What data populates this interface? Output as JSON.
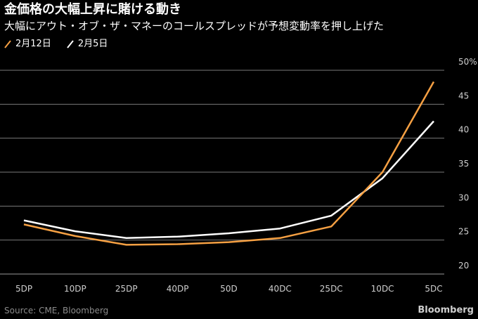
{
  "title": "金価格の大幅上昇に賭ける動き",
  "subtitle": "大幅にアウト・オブ・ザ・マネーのコールスプレッドが予想変動率を押し上げた",
  "legend": [
    {
      "label": "2月12日",
      "color": "#f5a043"
    },
    {
      "label": "2月5日",
      "color": "#ffffff"
    }
  ],
  "chart_data": {
    "type": "line",
    "categories": [
      "5DP",
      "10DP",
      "25DP",
      "40DP",
      "50D",
      "40DC",
      "25DC",
      "10DC",
      "5DC"
    ],
    "series": [
      {
        "name": "2月12日",
        "color": "#f5a043",
        "values": [
          27.3,
          25.6,
          24.3,
          24.4,
          24.7,
          25.3,
          27.0,
          35.0,
          48.3
        ]
      },
      {
        "name": "2月5日",
        "color": "#ffffff",
        "values": [
          27.9,
          26.3,
          25.3,
          25.5,
          26.0,
          26.7,
          28.6,
          34.1,
          42.5
        ]
      }
    ],
    "ylim": [
      20,
      50
    ],
    "yticks": [
      20,
      25,
      30,
      35,
      40,
      45,
      50
    ],
    "ytick_labels": [
      "20",
      "25",
      "30",
      "35",
      "40",
      "45",
      "50%"
    ],
    "xlabel": "",
    "ylabel": "",
    "grid": true,
    "legend_position": "top-left"
  },
  "footer": {
    "source": "Source: CME, Bloomberg",
    "brand": "Bloomberg"
  },
  "colors": {
    "background": "#000000",
    "grid": "#7a7a7a",
    "axis_text": "#cfcfcf"
  }
}
